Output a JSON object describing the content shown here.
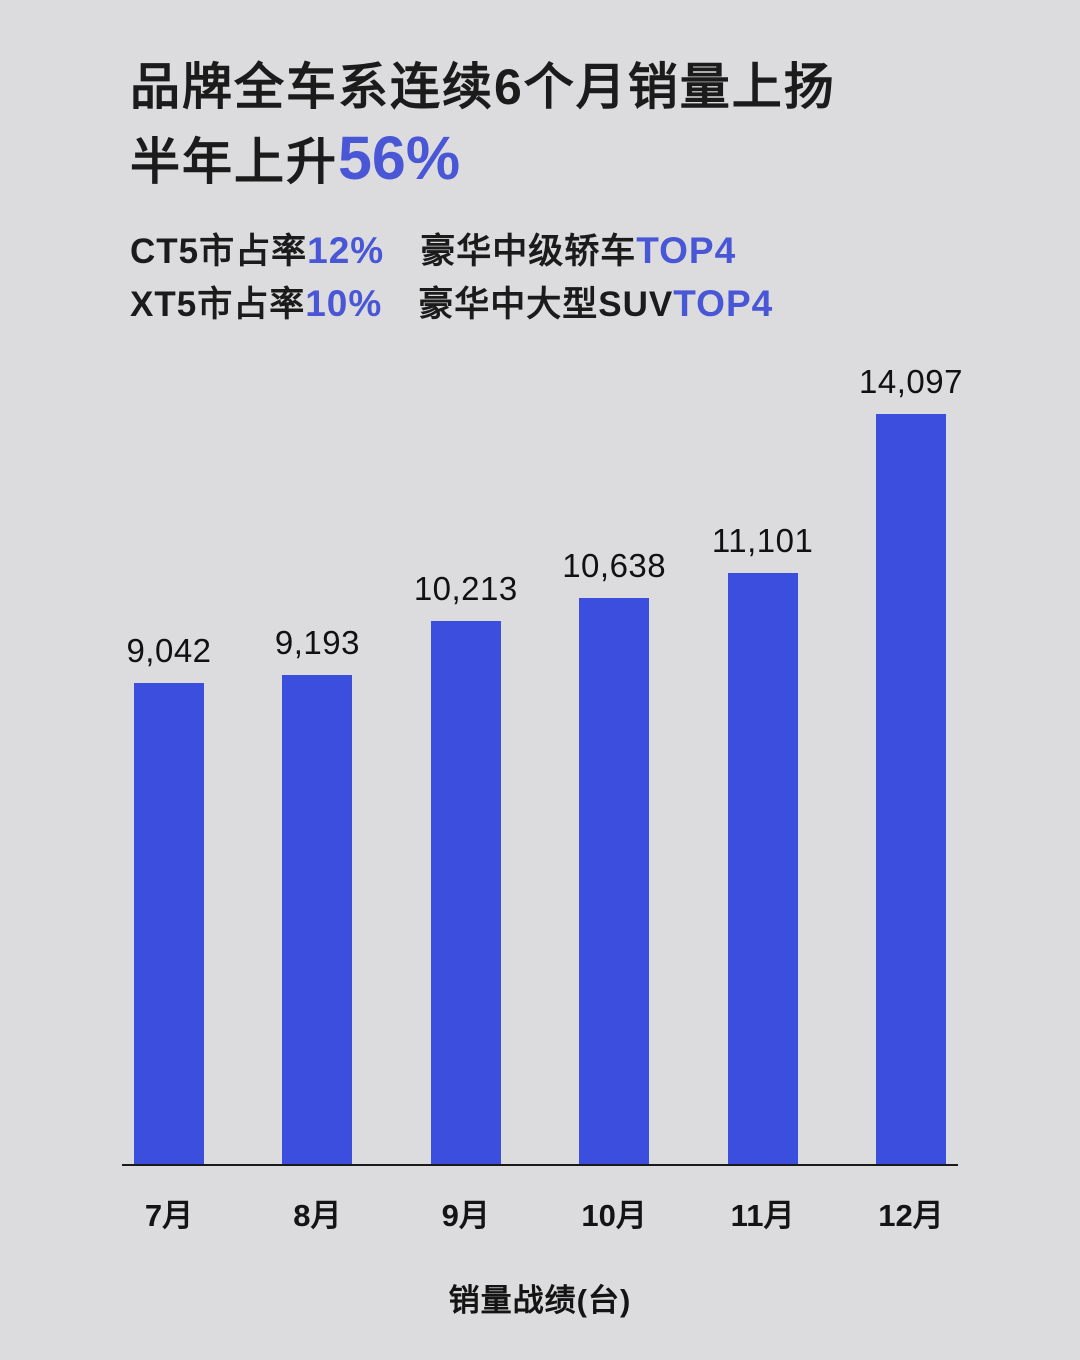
{
  "header": {
    "title_line1": "品牌全车系连续6个月销量上扬",
    "title_line2_text": "半年上升",
    "title_line2_highlight": "56%",
    "subtitles": [
      {
        "label": "CT5市占率",
        "value": "12%",
        "category": "豪华中级轿车",
        "rank": "TOP4"
      },
      {
        "label": "XT5市占率",
        "value": "10%",
        "category": "豪华中大型SUV",
        "rank": "TOP4"
      }
    ]
  },
  "chart_data": {
    "type": "bar",
    "categories": [
      "7月",
      "8月",
      "9月",
      "10月",
      "11月",
      "12月"
    ],
    "values": [
      9042,
      9193,
      10213,
      10638,
      11101,
      14097
    ],
    "value_labels": [
      "9,042",
      "9,193",
      "10,213",
      "10,638",
      "11,101",
      "14,097"
    ],
    "title": "品牌全车系连续6个月销量上扬 半年上升56%",
    "xlabel": "销量战绩(台)",
    "ylabel": "",
    "ylim": [
      0,
      14097
    ],
    "grid": false,
    "legend": false,
    "bar_color": "#3b4ede"
  },
  "colors": {
    "background": "#dcdcde",
    "text": "#1b1b1b",
    "accent": "#4956d6",
    "bar": "#3b4ede",
    "axis": "#1a1a1a"
  }
}
